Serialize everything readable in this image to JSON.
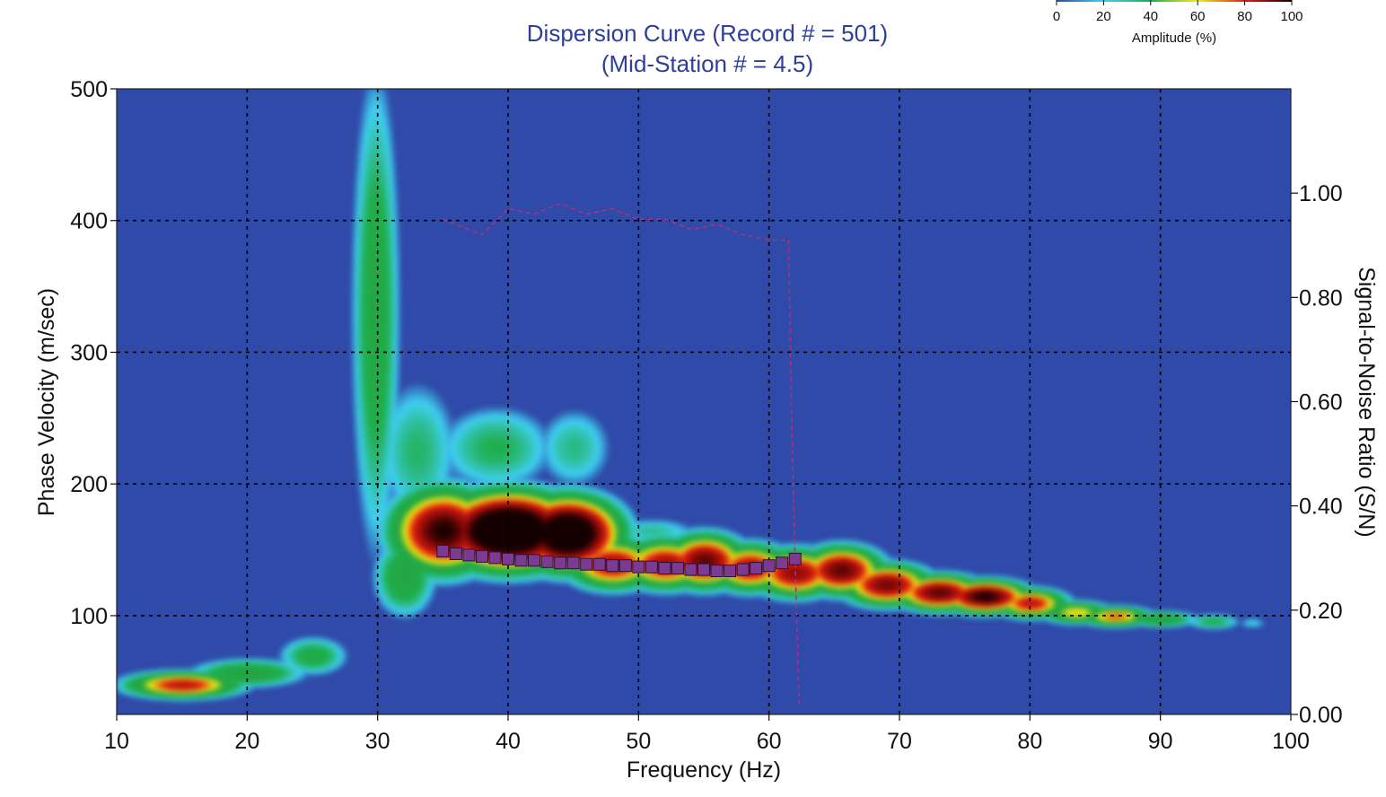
{
  "chart_data": {
    "type": "heatmap",
    "title_line1": "Dispersion Curve (Record # = 501)",
    "title_line2": "(Mid-Station # = 4.5)",
    "xlabel": "Frequency (Hz)",
    "ylabel": "Phase Velocity (m/sec)",
    "y2label": "Signal-to-Noise Ratio (S/N)",
    "xlim": [
      10,
      100
    ],
    "ylim": [
      25,
      500
    ],
    "y2lim": [
      0.0,
      1.2
    ],
    "x_ticks": [
      10,
      20,
      30,
      40,
      50,
      60,
      70,
      80,
      90,
      100
    ],
    "y_ticks": [
      100,
      200,
      300,
      400,
      500
    ],
    "y2_ticks": [
      "0.00",
      "0.20",
      "0.40",
      "0.60",
      "0.80",
      "1.00"
    ],
    "grid": true,
    "colorbar": {
      "label": "Amplitude (%)",
      "ticks": [
        0,
        20,
        40,
        60,
        80,
        100
      ],
      "colors": [
        "#2f4aa8",
        "#3fd0f2",
        "#1fae4a",
        "#f5f012",
        "#e11b12",
        "#150000"
      ]
    },
    "colors": {
      "background": "#2f4aa8",
      "title": "#2d3f99",
      "picks": "#7d3a93",
      "snr_line": "#b0307a",
      "grid": "#000000"
    },
    "picks": {
      "name": "dispersion picks",
      "x": [
        35,
        36,
        37,
        38,
        39,
        40,
        41,
        42,
        43,
        44,
        45,
        46,
        47,
        48,
        49,
        50,
        51,
        52,
        53,
        54,
        55,
        56,
        57,
        58,
        59,
        60,
        61,
        62
      ],
      "y": [
        149,
        147,
        146,
        145,
        144,
        143,
        142,
        142,
        141,
        140,
        140,
        139,
        139,
        138,
        138,
        137,
        137,
        136,
        136,
        135,
        135,
        134,
        134,
        135,
        136,
        138,
        140,
        143
      ]
    },
    "snr_series": {
      "name": "S/N",
      "x": [
        35,
        38,
        40,
        42,
        44,
        46,
        48,
        50,
        52,
        54,
        56,
        58,
        60,
        61.5,
        61.7,
        62,
        62.3
      ],
      "y": [
        0.95,
        0.92,
        0.97,
        0.96,
        0.98,
        0.96,
        0.97,
        0.95,
        0.95,
        0.93,
        0.94,
        0.92,
        0.91,
        0.91,
        0.6,
        0.3,
        0.02
      ]
    },
    "amplitude_features": [
      {
        "fc": 15,
        "vc": 48,
        "fw": 4,
        "vw": 9,
        "amp": 0.85
      },
      {
        "fc": 20,
        "vc": 57,
        "fw": 4,
        "vw": 10,
        "amp": 0.62
      },
      {
        "fc": 25,
        "vc": 70,
        "fw": 2.5,
        "vw": 14,
        "amp": 0.55
      },
      {
        "fc": 29.8,
        "vc": 330,
        "fw": 1.7,
        "vw": 170,
        "amp": 0.58
      },
      {
        "fc": 29.8,
        "vc": 440,
        "fw": 1.6,
        "vw": 90,
        "amp": 0.42
      },
      {
        "fc": 32,
        "vc": 130,
        "fw": 2.2,
        "vw": 28,
        "amp": 0.6
      },
      {
        "fc": 33,
        "vc": 225,
        "fw": 3.2,
        "vw": 55,
        "amp": 0.48
      },
      {
        "fc": 35,
        "vc": 165,
        "fw": 3.5,
        "vw": 28,
        "amp": 1.0
      },
      {
        "fc": 40,
        "vc": 165,
        "fw": 4.5,
        "vw": 25,
        "amp": 1.2
      },
      {
        "fc": 44.5,
        "vc": 163,
        "fw": 3.5,
        "vw": 24,
        "amp": 1.15
      },
      {
        "fc": 39,
        "vc": 228,
        "fw": 4.5,
        "vw": 32,
        "amp": 0.5
      },
      {
        "fc": 45,
        "vc": 228,
        "fw": 3,
        "vw": 32,
        "amp": 0.46
      },
      {
        "fc": 48,
        "vc": 140,
        "fw": 3.2,
        "vw": 17,
        "amp": 0.88
      },
      {
        "fc": 52,
        "vc": 140,
        "fw": 3.2,
        "vw": 17,
        "amp": 0.88
      },
      {
        "fc": 51,
        "vc": 165,
        "fw": 3.5,
        "vw": 10,
        "amp": 0.45
      },
      {
        "fc": 55,
        "vc": 142,
        "fw": 2.8,
        "vw": 18,
        "amp": 0.95
      },
      {
        "fc": 58.5,
        "vc": 137,
        "fw": 2.8,
        "vw": 16,
        "amp": 0.88
      },
      {
        "fc": 62,
        "vc": 133,
        "fw": 3,
        "vw": 16,
        "amp": 0.9
      },
      {
        "fc": 65.5,
        "vc": 135,
        "fw": 2.8,
        "vw": 16,
        "amp": 0.95
      },
      {
        "fc": 69,
        "vc": 124,
        "fw": 3,
        "vw": 14,
        "amp": 0.93
      },
      {
        "fc": 73,
        "vc": 118,
        "fw": 3,
        "vw": 12,
        "amp": 0.95
      },
      {
        "fc": 76.5,
        "vc": 115,
        "fw": 3,
        "vw": 11,
        "amp": 1.0
      },
      {
        "fc": 80,
        "vc": 110,
        "fw": 2.5,
        "vw": 10,
        "amp": 0.85
      },
      {
        "fc": 83.5,
        "vc": 103,
        "fw": 2.5,
        "vw": 8,
        "amp": 0.72
      },
      {
        "fc": 86.5,
        "vc": 100,
        "fw": 2.5,
        "vw": 7,
        "amp": 0.78
      },
      {
        "fc": 90,
        "vc": 98,
        "fw": 2.5,
        "vw": 6,
        "amp": 0.62
      },
      {
        "fc": 94,
        "vc": 96,
        "fw": 2,
        "vw": 6,
        "amp": 0.52
      },
      {
        "fc": 97,
        "vc": 95,
        "fw": 1.3,
        "vw": 5,
        "amp": 0.4
      }
    ]
  }
}
